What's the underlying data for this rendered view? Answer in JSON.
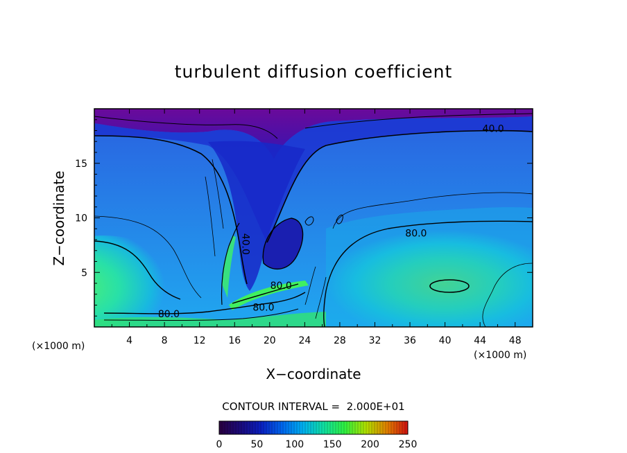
{
  "chart_data": {
    "type": "heatmap",
    "title": "turbulent diffusion coefficient",
    "xlabel": "X−coordinate",
    "ylabel": "Z−coordinate",
    "x_unit_left": "(×1000 m)",
    "x_unit_right": "(×1000 m)",
    "xlim": [
      0,
      50
    ],
    "ylim": [
      0,
      20
    ],
    "x_ticks": [
      4,
      8,
      12,
      16,
      20,
      24,
      28,
      32,
      36,
      40,
      44,
      48
    ],
    "y_ticks": [
      5,
      10,
      15
    ],
    "contour_labels": [
      {
        "text": "40.0",
        "x": 45.5,
        "z": 18.2
      },
      {
        "text": "80.0",
        "x": 36.7,
        "z": 8.6
      },
      {
        "text": "40.0",
        "x": 17.3,
        "z": 7.6
      },
      {
        "text": "80.0",
        "x": 21.3,
        "z": 3.8
      },
      {
        "text": "80.0",
        "x": 19.3,
        "z": 1.8
      },
      {
        "text": "80.0",
        "x": 8.5,
        "z": 1.2
      }
    ],
    "contour_interval_text": "CONTOUR INTERVAL =  2.000E+01",
    "contour_interval": 20,
    "colorbar": {
      "min": 0,
      "max": 250,
      "ticks": [
        "0",
        "50",
        "100",
        "150",
        "200",
        "250"
      ],
      "colors": [
        "#2a0040",
        "#1b0a7a",
        "#0a1fc0",
        "#0066ee",
        "#00b0f0",
        "#10e0a0",
        "#30f040",
        "#b0e000",
        "#e08000",
        "#d01010"
      ]
    },
    "field_colors": {
      "low": "#5a0a8a",
      "mid_low": "#1a2ad8",
      "mid": "#1ea0ee",
      "high": "#22e88c",
      "peak": "#6af030"
    }
  }
}
